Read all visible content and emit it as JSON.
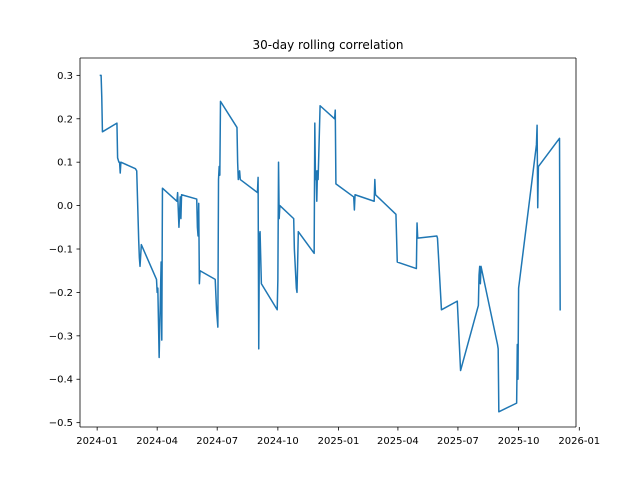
{
  "chart_data": {
    "type": "line",
    "title": "30-day rolling correlation",
    "xlabel": "",
    "ylabel": "",
    "grid": false,
    "x_axis": {
      "type": "date",
      "xlim": [
        "2023-12-06",
        "2025-12-27"
      ],
      "ticks": [
        "2024-01",
        "2024-04",
        "2024-07",
        "2024-10",
        "2025-01",
        "2025-04",
        "2025-07",
        "2025-10",
        "2026-01"
      ]
    },
    "y_axis": {
      "ylim": [
        -0.51,
        0.34
      ],
      "ticks": [
        0.3,
        0.2,
        0.1,
        0.0,
        -0.1,
        -0.2,
        -0.3,
        -0.4,
        -0.5
      ],
      "tick_labels": [
        "0.3",
        "0.2",
        "0.1",
        "0.0",
        "−0.1",
        "−0.2",
        "−0.3",
        "−0.4",
        "−0.5"
      ]
    },
    "series": [
      {
        "color": "#1f77b4",
        "points": [
          [
            "2024-01-06",
            0.3
          ],
          [
            "2024-01-07",
            0.3
          ],
          [
            "2024-01-08",
            0.25
          ],
          [
            "2024-01-09",
            0.17
          ],
          [
            "2024-01-31",
            0.19
          ],
          [
            "2024-02-01",
            0.11
          ],
          [
            "2024-02-03",
            0.1
          ],
          [
            "2024-02-04",
            0.1
          ],
          [
            "2024-02-05",
            0.075
          ],
          [
            "2024-02-06",
            0.1
          ],
          [
            "2024-02-28",
            0.085
          ],
          [
            "2024-03-01",
            0.08
          ],
          [
            "2024-03-04",
            -0.08
          ],
          [
            "2024-03-05",
            -0.12
          ],
          [
            "2024-03-06",
            -0.14
          ],
          [
            "2024-03-08",
            -0.09
          ],
          [
            "2024-03-31",
            -0.17
          ],
          [
            "2024-04-01",
            -0.2
          ],
          [
            "2024-04-02",
            -0.19
          ],
          [
            "2024-04-04",
            -0.35
          ],
          [
            "2024-04-07",
            -0.13
          ],
          [
            "2024-04-08",
            -0.31
          ],
          [
            "2024-04-09",
            0.04
          ],
          [
            "2024-05-01",
            0.01
          ],
          [
            "2024-05-02",
            0.03
          ],
          [
            "2024-05-04",
            -0.05
          ],
          [
            "2024-05-06",
            0.02
          ],
          [
            "2024-05-07",
            -0.03
          ],
          [
            "2024-05-08",
            0.025
          ],
          [
            "2024-05-31",
            0.015
          ],
          [
            "2024-06-01",
            -0.05
          ],
          [
            "2024-06-02",
            -0.07
          ],
          [
            "2024-06-03",
            0.005
          ],
          [
            "2024-06-04",
            -0.18
          ],
          [
            "2024-06-05",
            -0.15
          ],
          [
            "2024-06-28",
            -0.17
          ],
          [
            "2024-06-30",
            -0.24
          ],
          [
            "2024-07-02",
            -0.28
          ],
          [
            "2024-07-03",
            0.06
          ],
          [
            "2024-07-04",
            0.09
          ],
          [
            "2024-07-05",
            0.07
          ],
          [
            "2024-07-06",
            0.24
          ],
          [
            "2024-07-31",
            0.18
          ],
          [
            "2024-08-01",
            0.1
          ],
          [
            "2024-08-02",
            0.06
          ],
          [
            "2024-08-03",
            0.07
          ],
          [
            "2024-08-04",
            0.08
          ],
          [
            "2024-08-05",
            0.06
          ],
          [
            "2024-08-31",
            0.03
          ],
          [
            "2024-09-01",
            0.065
          ],
          [
            "2024-09-02",
            -0.33
          ],
          [
            "2024-09-03",
            -0.07
          ],
          [
            "2024-09-04",
            -0.06
          ],
          [
            "2024-09-06",
            -0.18
          ],
          [
            "2024-09-30",
            -0.24
          ],
          [
            "2024-10-01",
            -0.17
          ],
          [
            "2024-10-02",
            0.1
          ],
          [
            "2024-10-03",
            -0.03
          ],
          [
            "2024-10-04",
            0.0
          ],
          [
            "2024-10-25",
            -0.03
          ],
          [
            "2024-10-26",
            -0.1
          ],
          [
            "2024-10-28",
            -0.16
          ],
          [
            "2024-10-29",
            -0.19
          ],
          [
            "2024-10-30",
            -0.2
          ],
          [
            "2024-11-01",
            -0.06
          ],
          [
            "2024-11-25",
            -0.11
          ],
          [
            "2024-11-26",
            0.19
          ],
          [
            "2024-11-27",
            0.06
          ],
          [
            "2024-11-28",
            0.08
          ],
          [
            "2024-11-29",
            0.01
          ],
          [
            "2024-11-30",
            0.08
          ],
          [
            "2024-12-01",
            0.06
          ],
          [
            "2024-12-04",
            0.23
          ],
          [
            "2024-12-26",
            0.2
          ],
          [
            "2024-12-27",
            0.22
          ],
          [
            "2024-12-28",
            0.05
          ],
          [
            "2025-01-24",
            0.02
          ],
          [
            "2025-01-25",
            -0.01
          ],
          [
            "2025-01-26",
            0.025
          ],
          [
            "2025-02-24",
            0.01
          ],
          [
            "2025-02-25",
            0.06
          ],
          [
            "2025-02-26",
            0.025
          ],
          [
            "2025-03-29",
            -0.02
          ],
          [
            "2025-03-31",
            -0.13
          ],
          [
            "2025-04-29",
            -0.145
          ],
          [
            "2025-04-30",
            -0.04
          ],
          [
            "2025-05-01",
            -0.075
          ],
          [
            "2025-05-30",
            -0.07
          ],
          [
            "2025-05-31",
            -0.075
          ],
          [
            "2025-06-06",
            -0.24
          ],
          [
            "2025-06-30",
            -0.22
          ],
          [
            "2025-07-05",
            -0.38
          ],
          [
            "2025-08-01",
            -0.23
          ],
          [
            "2025-08-02",
            -0.16
          ],
          [
            "2025-08-03",
            -0.14
          ],
          [
            "2025-08-04",
            -0.18
          ],
          [
            "2025-08-05",
            -0.14
          ],
          [
            "2025-08-30",
            -0.32
          ],
          [
            "2025-08-31",
            -0.33
          ],
          [
            "2025-09-01",
            -0.475
          ],
          [
            "2025-09-28",
            -0.455
          ],
          [
            "2025-09-29",
            -0.32
          ],
          [
            "2025-09-30",
            -0.4
          ],
          [
            "2025-10-01",
            -0.19
          ],
          [
            "2025-10-28",
            0.14
          ],
          [
            "2025-10-29",
            0.185
          ],
          [
            "2025-10-30",
            -0.005
          ],
          [
            "2025-10-31",
            0.09
          ],
          [
            "2025-12-02",
            0.155
          ],
          [
            "2025-12-03",
            -0.24
          ]
        ]
      }
    ]
  }
}
